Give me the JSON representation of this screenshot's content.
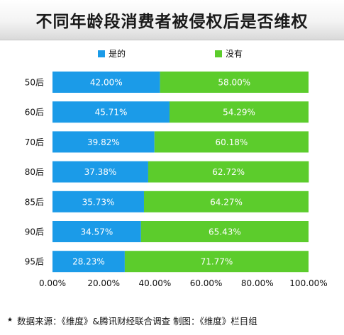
{
  "title": "不同年龄段消费者被侵权后是否维权",
  "footer": {
    "star": "★",
    "source": "数据来源：《维度》&腾讯财经联合调查 制图：《维度》栏目组"
  },
  "colors": {
    "series_a": "#1b9be8",
    "series_b": "#5ccc2c",
    "background": "#ffffff"
  },
  "chart_data": {
    "type": "bar",
    "orientation": "horizontal",
    "stacked": true,
    "title": "不同年龄段消费者被侵权后是否维权",
    "categories": [
      "50后",
      "60后",
      "70后",
      "80后",
      "85后",
      "90后",
      "95后"
    ],
    "series": [
      {
        "name": "是的",
        "values": [
          42.0,
          45.71,
          39.82,
          37.38,
          35.73,
          34.57,
          28.23
        ],
        "labels": [
          "42.00%",
          "45.71%",
          "39.82%",
          "37.38%",
          "35.73%",
          "34.57%",
          "28.23%"
        ]
      },
      {
        "name": "没有",
        "values": [
          58.0,
          54.29,
          60.18,
          62.72,
          64.27,
          65.43,
          71.77
        ],
        "labels": [
          "58.00%",
          "54.29%",
          "60.18%",
          "62.72%",
          "64.27%",
          "65.43%",
          "71.77%"
        ]
      }
    ],
    "xlim": [
      0,
      100
    ],
    "x_ticks": [
      "0.00%",
      "20.00%",
      "40.00%",
      "60.00%",
      "80.00%",
      "100.00%"
    ],
    "legend_position": "top",
    "grid": false
  }
}
